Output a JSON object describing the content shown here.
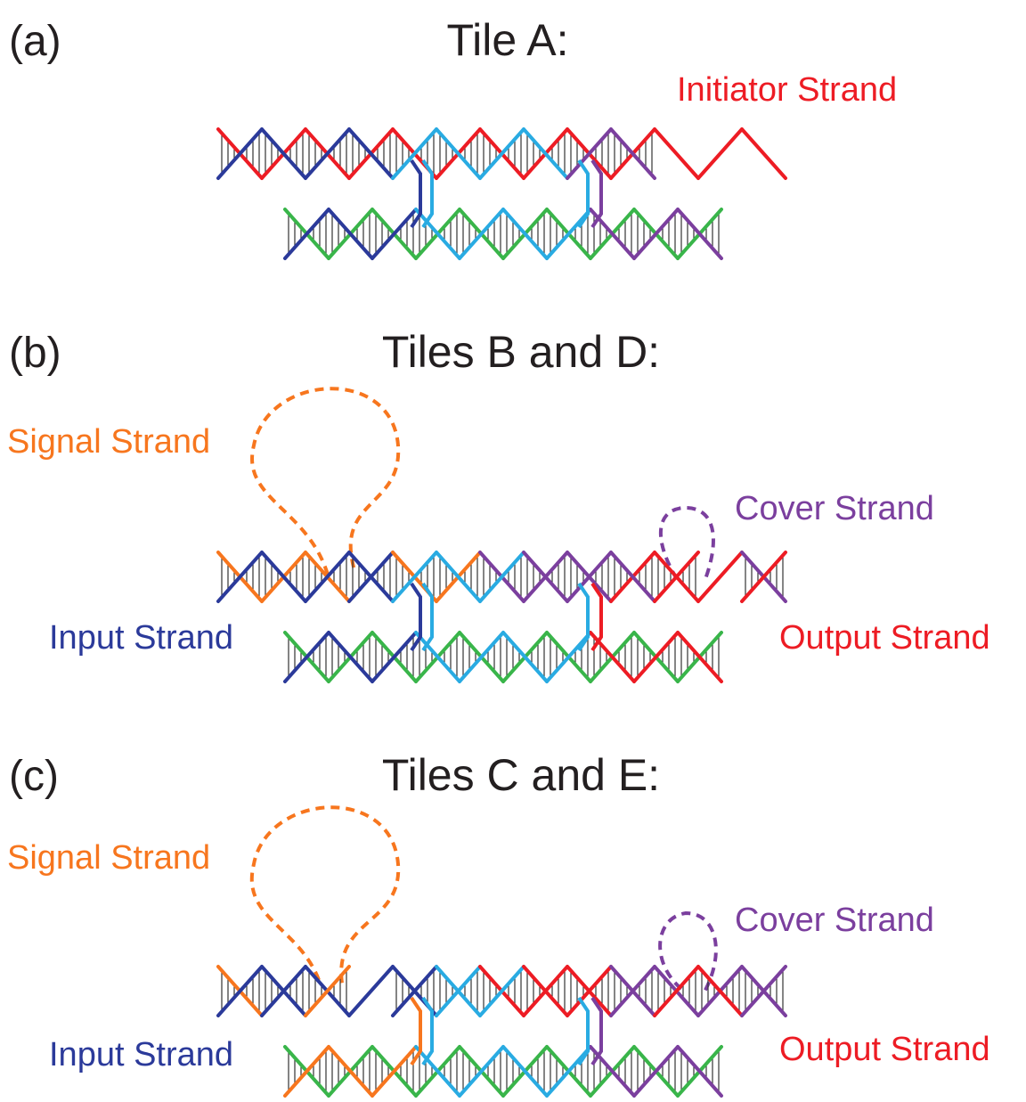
{
  "panels": [
    {
      "label": "(a)",
      "title": "Tile A:",
      "annotations": [
        "Initiator Strand"
      ]
    },
    {
      "label": "(b)",
      "title": "Tiles B and D:",
      "annotations": [
        "Signal Strand",
        "Cover Strand",
        "Input Strand",
        "Output Strand"
      ]
    },
    {
      "label": "(c)",
      "title": "Tiles C and E:",
      "annotations": [
        "Signal Strand",
        "Cover Strand",
        "Input Strand",
        "Output Strand"
      ]
    }
  ]
}
